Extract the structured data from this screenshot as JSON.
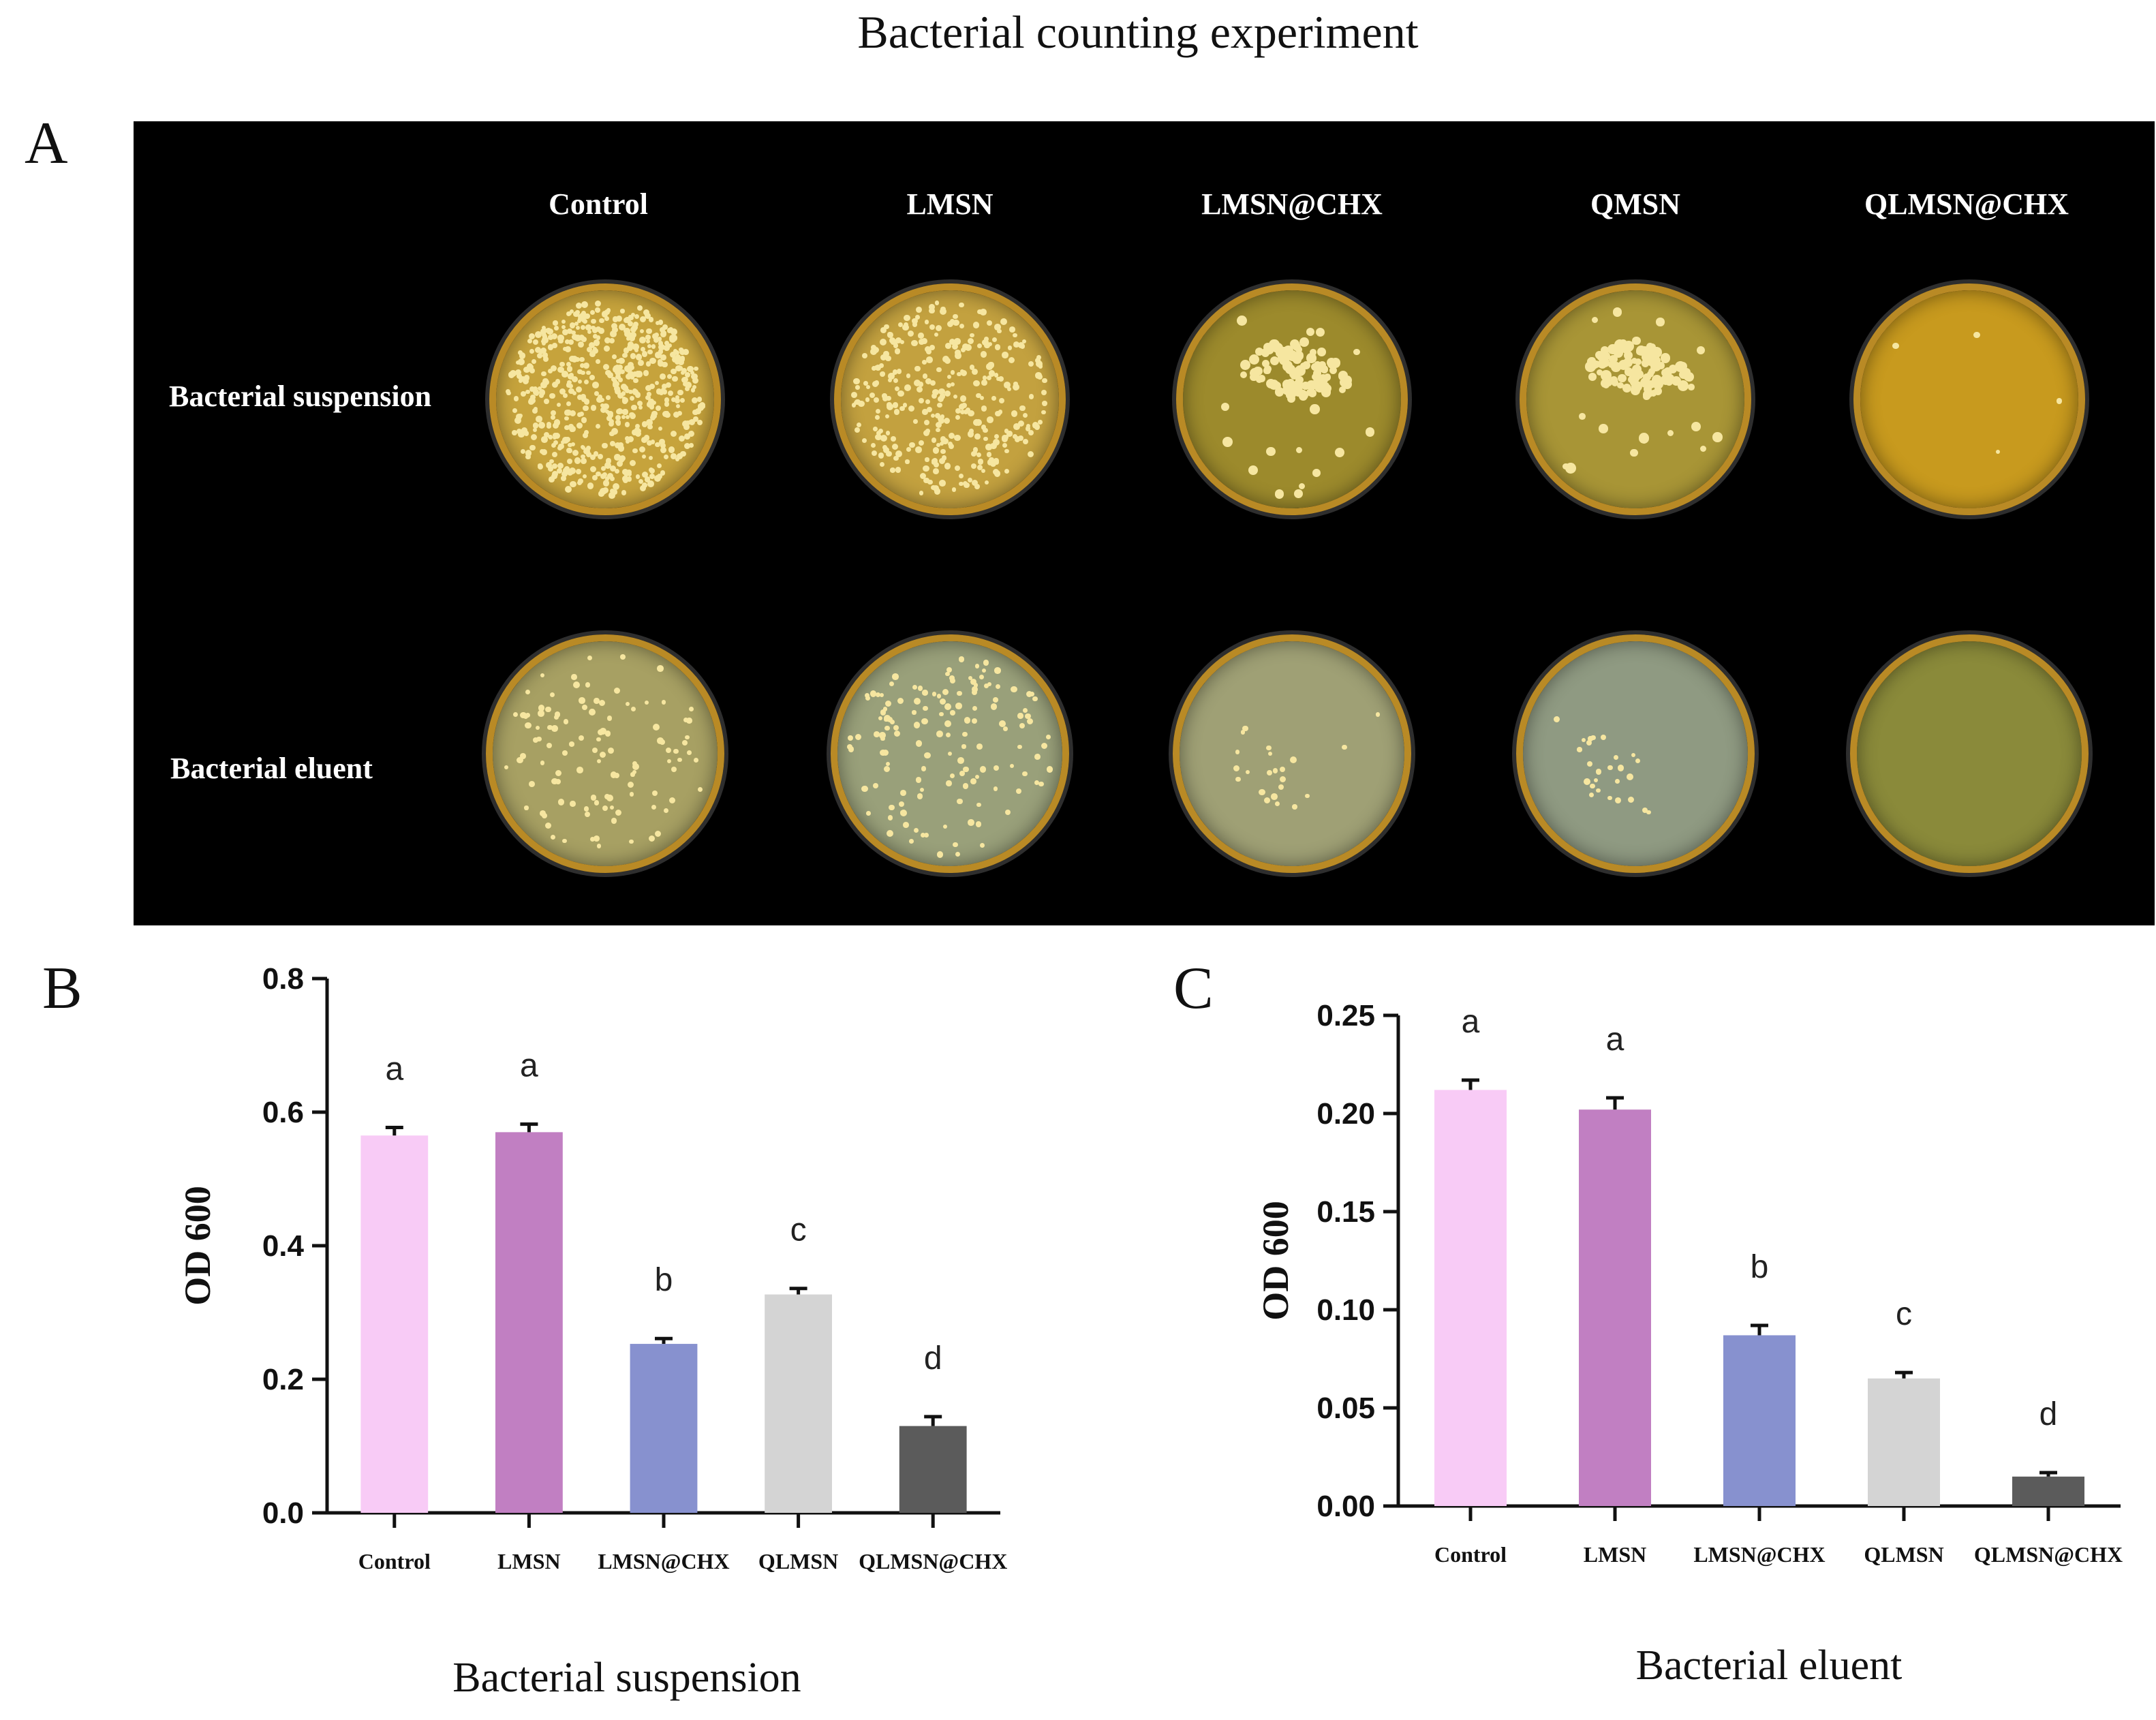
{
  "figure": {
    "title": "Bacterial counting experiment",
    "panel_letters": [
      "A",
      "B",
      "C"
    ]
  },
  "panel_a": {
    "columns": [
      "Control",
      "LMSN",
      "LMSN@CHX",
      "QMSN",
      "QLMSN@CHX"
    ],
    "rows": [
      "Bacterial suspension",
      "Bacterial eluent"
    ],
    "colors": {
      "background": "#000000",
      "agar": "#c9a43a",
      "colony": "#f6e6a0",
      "rim": "#b98a25"
    }
  },
  "chart_data": [
    {
      "type": "bar",
      "panel": "B",
      "categories": [
        "Control",
        "LMSN",
        "LMSN@CHX",
        "QLMSN",
        "QLMSN@CHX"
      ],
      "values": [
        0.565,
        0.57,
        0.253,
        0.327,
        0.13
      ],
      "errors": [
        0.012,
        0.012,
        0.008,
        0.009,
        0.014
      ],
      "significance": [
        "a",
        "a",
        "b",
        "c",
        "d"
      ],
      "colors": [
        "#f8cbf6",
        "#c17fc2",
        "#8791cf",
        "#d4d4d4",
        "#5b5b5b"
      ],
      "ylabel": "OD  600",
      "xlabel": "Bacterial suspension",
      "ylim": [
        0,
        0.8
      ],
      "yticks": [
        0,
        0.2,
        0.4,
        0.6,
        0.8
      ],
      "ytick_labels": [
        "0.0",
        "0.2",
        "0.4",
        "0.6",
        "0.8"
      ]
    },
    {
      "type": "bar",
      "panel": "C",
      "categories": [
        "Control",
        "LMSN",
        "LMSN@CHX",
        "QLMSN",
        "QLMSN@CHX"
      ],
      "values": [
        0.212,
        0.202,
        0.087,
        0.065,
        0.015
      ],
      "errors": [
        0.005,
        0.006,
        0.005,
        0.003,
        0.002
      ],
      "significance": [
        "a",
        "a",
        "b",
        "c",
        "d"
      ],
      "colors": [
        "#f8cbf6",
        "#c17fc2",
        "#8791cf",
        "#d4d4d4",
        "#5b5b5b"
      ],
      "ylabel": "OD  600",
      "xlabel": "Bacterial eluent",
      "ylim": [
        0,
        0.25
      ],
      "yticks": [
        0,
        0.05,
        0.1,
        0.15,
        0.2,
        0.25
      ],
      "ytick_labels": [
        "0.00",
        "0.05",
        "0.10",
        "0.15",
        "0.20",
        "0.25"
      ]
    }
  ]
}
